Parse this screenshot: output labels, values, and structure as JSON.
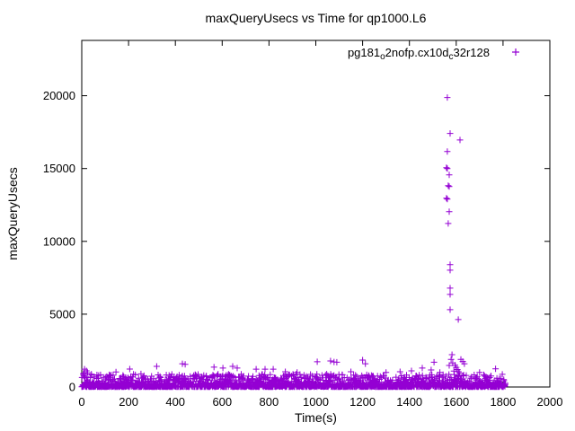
{
  "page": {
    "background": "#ffffff",
    "text_color": "#000000"
  },
  "chart_data": {
    "type": "scatter",
    "title": "maxQueryUsecs vs Time for qp1000.L6",
    "xlabel": "Time(s)",
    "ylabel": "maxQueryUsecs",
    "xlim": [
      0,
      2000
    ],
    "ylim": [
      0,
      23800
    ],
    "xticks": [
      0,
      200,
      400,
      600,
      800,
      1000,
      1200,
      1400,
      1600,
      1800,
      2000
    ],
    "yticks": [
      0,
      5000,
      10000,
      15000,
      20000
    ],
    "grid": false,
    "tick_style": "inward-mirrored",
    "axis_color": "#000000",
    "text_color": "#000000",
    "legend": {
      "position": "top-right-inside",
      "marker": "plus"
    },
    "series": [
      {
        "name": "pg181_o2nofp.cx10d_c32r128",
        "name_segments": [
          {
            "text": "pg181"
          },
          {
            "text": "o",
            "sub": true
          },
          {
            "text": "2nofp.cx10d"
          },
          {
            "text": "c",
            "sub": true
          },
          {
            "text": "32r128"
          }
        ],
        "color": "#9400D3",
        "marker": "plus",
        "marker_size": 7,
        "spike_points": [
          [
            1562,
            19880
          ],
          [
            1574,
            17410
          ],
          [
            1616,
            16960
          ],
          [
            1562,
            16170
          ],
          [
            1558,
            15060
          ],
          [
            1562,
            15000
          ],
          [
            1570,
            14570
          ],
          [
            1566,
            13830
          ],
          [
            1570,
            13770
          ],
          [
            1558,
            12960
          ],
          [
            1562,
            12900
          ],
          [
            1570,
            12040
          ],
          [
            1566,
            11230
          ],
          [
            1574,
            8400
          ],
          [
            1574,
            8020
          ],
          [
            1574,
            6790
          ],
          [
            1574,
            6360
          ],
          [
            1574,
            5310
          ],
          [
            1609,
            4630
          ],
          [
            1582,
            2220
          ],
          [
            1570,
            1480
          ]
        ],
        "outlier_points": [
          [
            8,
            950
          ],
          [
            12,
            1230
          ],
          [
            20,
            1110
          ],
          [
            25,
            980
          ],
          [
            320,
            1420
          ],
          [
            430,
            1600
          ],
          [
            442,
            1560
          ],
          [
            565,
            1360
          ],
          [
            603,
            1300
          ],
          [
            645,
            1420
          ],
          [
            664,
            1300
          ],
          [
            745,
            1230
          ],
          [
            783,
            1230
          ],
          [
            818,
            1230
          ],
          [
            870,
            1050
          ],
          [
            920,
            1000
          ],
          [
            1006,
            1730
          ],
          [
            1063,
            1790
          ],
          [
            1078,
            1720
          ],
          [
            1090,
            1700
          ],
          [
            1150,
            1050
          ],
          [
            1200,
            1850
          ],
          [
            1212,
            1600
          ],
          [
            1300,
            1000
          ],
          [
            1360,
            1050
          ],
          [
            1409,
            1110
          ],
          [
            1455,
            1300
          ],
          [
            1493,
            1170
          ],
          [
            1505,
            1700
          ],
          [
            1530,
            1000
          ],
          [
            1578,
            1900
          ],
          [
            1585,
            1650
          ],
          [
            1590,
            1100
          ],
          [
            1595,
            1500
          ],
          [
            1600,
            1350
          ],
          [
            1605,
            1200
          ],
          [
            1610,
            1050
          ],
          [
            1615,
            950
          ],
          [
            1620,
            1900
          ],
          [
            1628,
            1750
          ],
          [
            1635,
            1600
          ],
          [
            1700,
            1000
          ],
          [
            1768,
            1250
          ]
        ],
        "band": {
          "description": "dense noise band of per-second samples",
          "count": 1810,
          "t_min": 0,
          "t_max": 1810,
          "y_base": 15,
          "y_span": 870,
          "exponent": 3,
          "tail_prob": 0.03,
          "tail_min": 100,
          "tail_span": 350,
          "seed": 1234
        }
      }
    ]
  }
}
